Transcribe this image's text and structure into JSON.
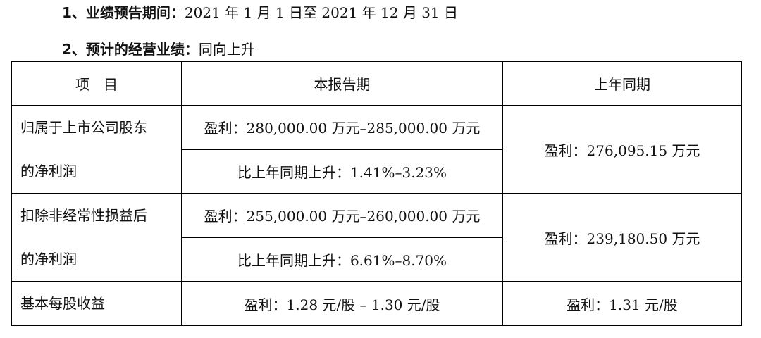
{
  "headings": [
    {
      "label": "1、业绩预告期间：",
      "value": "2021 年 1 月 1 日至 2021 年 12 月 31 日"
    },
    {
      "label": "2、预计的经营业绩：",
      "value": "同向上升"
    }
  ],
  "table": {
    "headers": [
      "项　目",
      "本报告期",
      "上年同期"
    ],
    "rows": [
      {
        "item_line1": "归属于上市公司股东",
        "item_line2": "的净利润",
        "current_profit": "盈利：280,000.00 万元–285,000.00 万元",
        "current_change": "比上年同期上升：1.41%–3.23%",
        "prior": "盈利：276,095.15 万元"
      },
      {
        "item_line1": "扣除非经常性损益后",
        "item_line2": "的净利润",
        "current_profit": "盈利：255,000.00 万元–260,000.00 万元",
        "current_change": "比上年同期上升：6.61%–8.70%",
        "prior": "盈利：239,180.50 万元"
      },
      {
        "item": "基本每股收益",
        "current": "盈利：1.28 元/股 – 1.30 元/股",
        "prior": "盈利：1.31 元/股"
      }
    ]
  }
}
